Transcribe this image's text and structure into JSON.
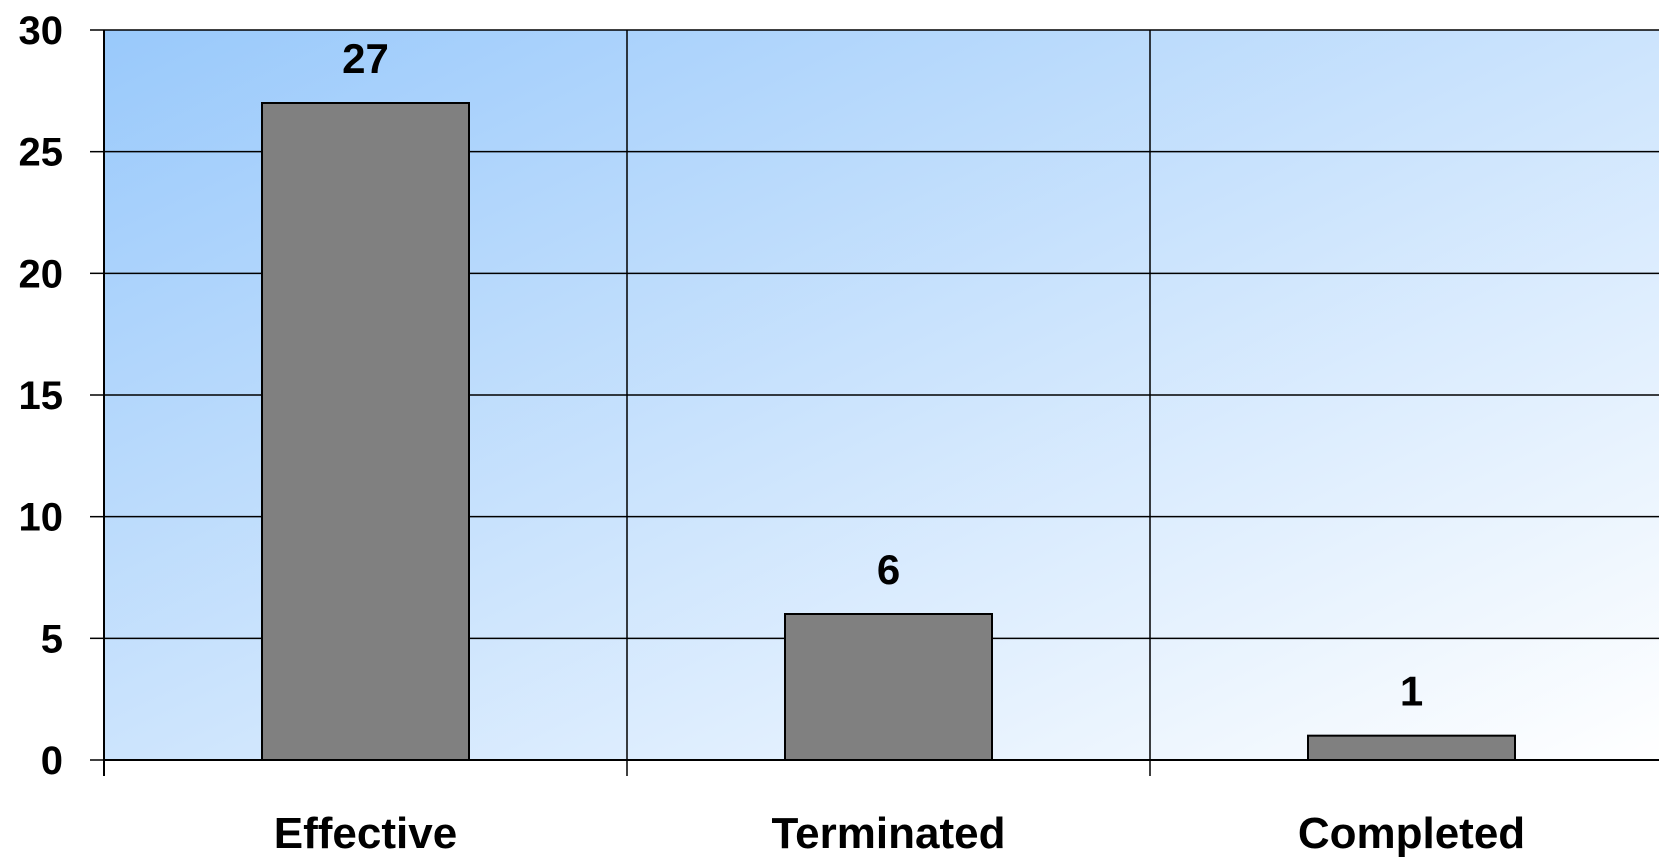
{
  "chart_data": {
    "type": "bar",
    "categories": [
      "Effective",
      "Terminated",
      "Completed"
    ],
    "values": [
      27,
      6,
      1
    ],
    "data_labels": [
      "27",
      "6",
      "1"
    ],
    "title": "",
    "xlabel": "",
    "ylabel": "",
    "ylim": [
      0,
      30
    ],
    "yticks": [
      0,
      5,
      10,
      15,
      20,
      25,
      30
    ],
    "grid": true,
    "legend": "none",
    "colors": {
      "bar_fill": "#808080",
      "bar_stroke": "#000000",
      "background_top_left": "#99c9fb",
      "background_bottom_right": "#ffffff",
      "gridline": "#000000"
    }
  }
}
